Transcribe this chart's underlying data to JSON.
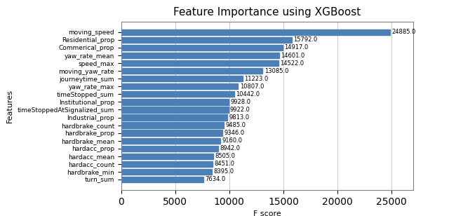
{
  "title": "Feature Importance using XGBoost",
  "xlabel": "F score",
  "ylabel": "Features",
  "features": [
    "turn_sum",
    "hardbrake_min",
    "hardacc_count",
    "hardacc_mean",
    "hardacc_prop",
    "hardbrake_mean",
    "hardbrake_prop",
    "hardbrake_count",
    "Industrial_prop",
    "timeStoppedAtSignalized_sum",
    "Institutional_prop",
    "timeStopped_sum",
    "yaw_rate_max",
    "journeytime_sum",
    "moving_yaw_rate",
    "speed_max",
    "yaw_rate_mean",
    "Commerical_prop",
    "Residential_prop",
    "moving_speed"
  ],
  "values": [
    7634.0,
    8395.0,
    8451.0,
    8505.0,
    8942.0,
    9160.0,
    9346.0,
    9485.0,
    9813.0,
    9922.0,
    9928.0,
    10442.0,
    10807.0,
    11223.0,
    13085.0,
    14522.0,
    14601.0,
    14917.0,
    15792.0,
    24885.0
  ],
  "bar_color": "#4c7fb5",
  "background_color": "#ffffff",
  "grid_color": "#c0c0c0",
  "xlim": [
    0,
    27000
  ],
  "xticks": [
    0,
    5000,
    10000,
    15000,
    20000,
    25000
  ],
  "title_fontsize": 11,
  "label_fontsize": 8,
  "tick_fontsize": 6.5,
  "value_fontsize": 6.0,
  "bar_height": 0.75
}
